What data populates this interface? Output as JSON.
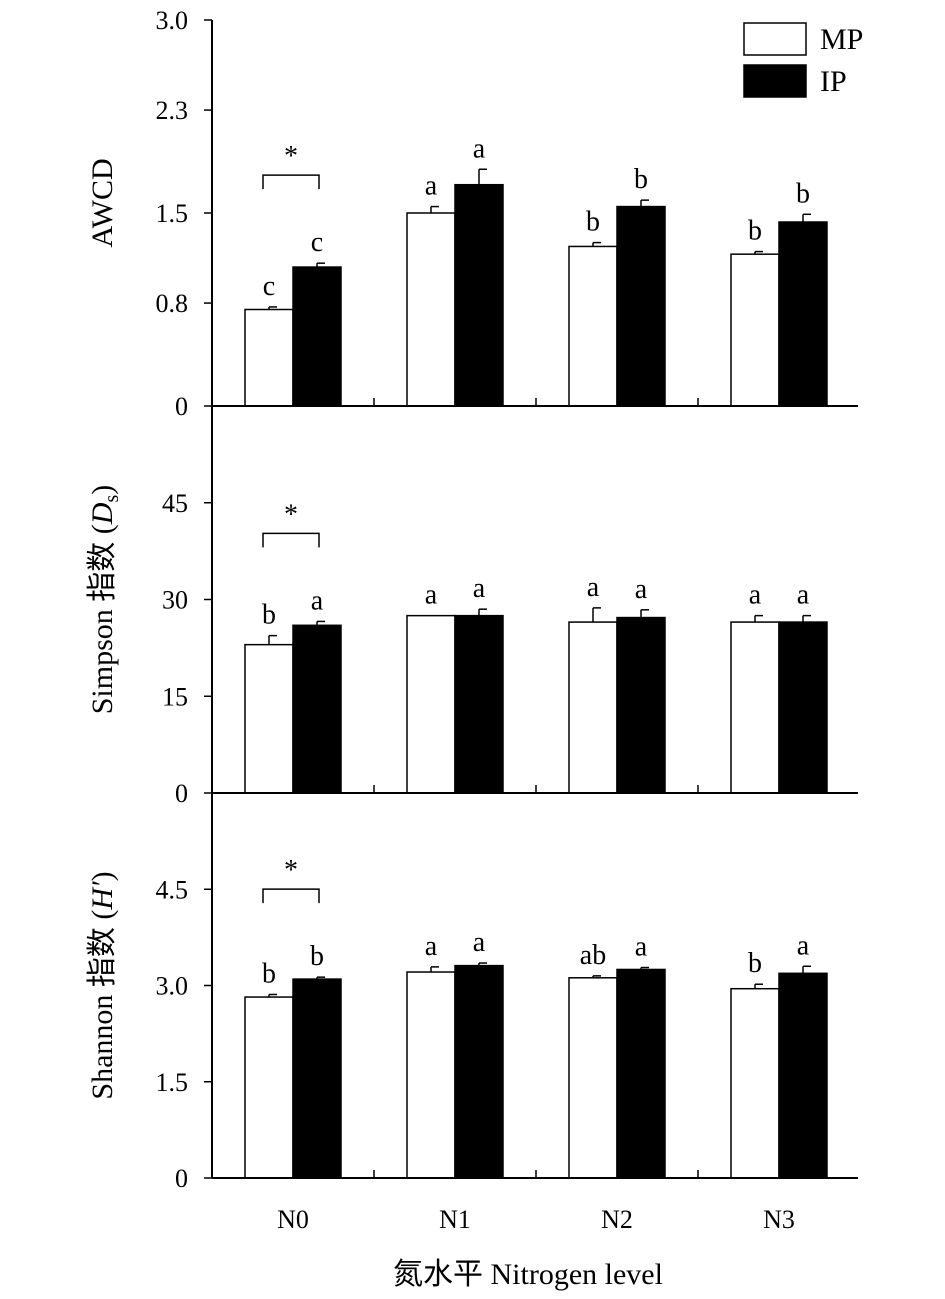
{
  "chart_data": [
    {
      "type": "bar",
      "ylabel": "AWCD",
      "ylabel_suffix": "",
      "yticks": [
        "3.0",
        "2.3",
        "1.5",
        "0.8",
        "0"
      ],
      "ylim": [
        0,
        3.0
      ],
      "categories": [
        "N0",
        "N1",
        "N2",
        "N3"
      ],
      "series": [
        {
          "name": "MP",
          "fill": "#ffffff",
          "values": [
            0.75,
            1.5,
            1.24,
            1.18
          ],
          "errors": [
            0.02,
            0.05,
            0.03,
            0.02
          ],
          "letters": [
            "c",
            "a",
            "b",
            "b"
          ]
        },
        {
          "name": "IP",
          "fill": "#000000",
          "values": [
            1.08,
            1.72,
            1.55,
            1.43
          ],
          "errors": [
            0.03,
            0.12,
            0.05,
            0.06
          ],
          "letters": [
            "c",
            "a",
            "b",
            "b"
          ]
        }
      ],
      "significance": {
        "category": "N0",
        "label": "*"
      }
    },
    {
      "type": "bar",
      "ylabel": "Simpson 指数 (",
      "ylabel_italic": "D",
      "ylabel_sub": "s",
      "ylabel_suffix": ")",
      "yticks": [
        "45",
        "30",
        "15",
        "0"
      ],
      "ylim": [
        0,
        60
      ],
      "categories": [
        "N0",
        "N1",
        "N2",
        "N3"
      ],
      "series": [
        {
          "name": "MP",
          "fill": "#ffffff",
          "values": [
            23.0,
            27.5,
            26.5,
            26.5
          ],
          "errors": [
            1.4,
            0.0,
            2.2,
            1.0
          ],
          "letters": [
            "b",
            "a",
            "a",
            "a"
          ]
        },
        {
          "name": "IP",
          "fill": "#000000",
          "values": [
            26.0,
            27.5,
            27.2,
            26.5
          ],
          "errors": [
            0.6,
            1.0,
            1.2,
            1.0
          ],
          "letters": [
            "a",
            "a",
            "a",
            "a"
          ]
        }
      ],
      "significance": {
        "category": "N0",
        "label": "*"
      }
    },
    {
      "type": "bar",
      "ylabel": "Shannon 指数 (",
      "ylabel_italic": "H′",
      "ylabel_sub": "",
      "ylabel_suffix": ")",
      "yticks": [
        "4.5",
        "3.0",
        "1.5",
        "0"
      ],
      "ylim": [
        0,
        6.0
      ],
      "categories": [
        "N0",
        "N1",
        "N2",
        "N3"
      ],
      "series": [
        {
          "name": "MP",
          "fill": "#ffffff",
          "values": [
            2.82,
            3.21,
            3.12,
            2.95
          ],
          "errors": [
            0.04,
            0.08,
            0.03,
            0.07
          ],
          "letters": [
            "b",
            "a",
            "ab",
            "b"
          ]
        },
        {
          "name": "IP",
          "fill": "#000000",
          "values": [
            3.1,
            3.31,
            3.25,
            3.19
          ],
          "errors": [
            0.03,
            0.04,
            0.03,
            0.11
          ],
          "letters": [
            "b",
            "a",
            "a",
            "a"
          ]
        }
      ],
      "significance": {
        "category": "N0",
        "label": "*"
      }
    }
  ],
  "legend": [
    {
      "name": "MP",
      "fill": "#ffffff"
    },
    {
      "name": "IP",
      "fill": "#000000"
    }
  ],
  "xlabel": "氮水平 Nitrogen level"
}
